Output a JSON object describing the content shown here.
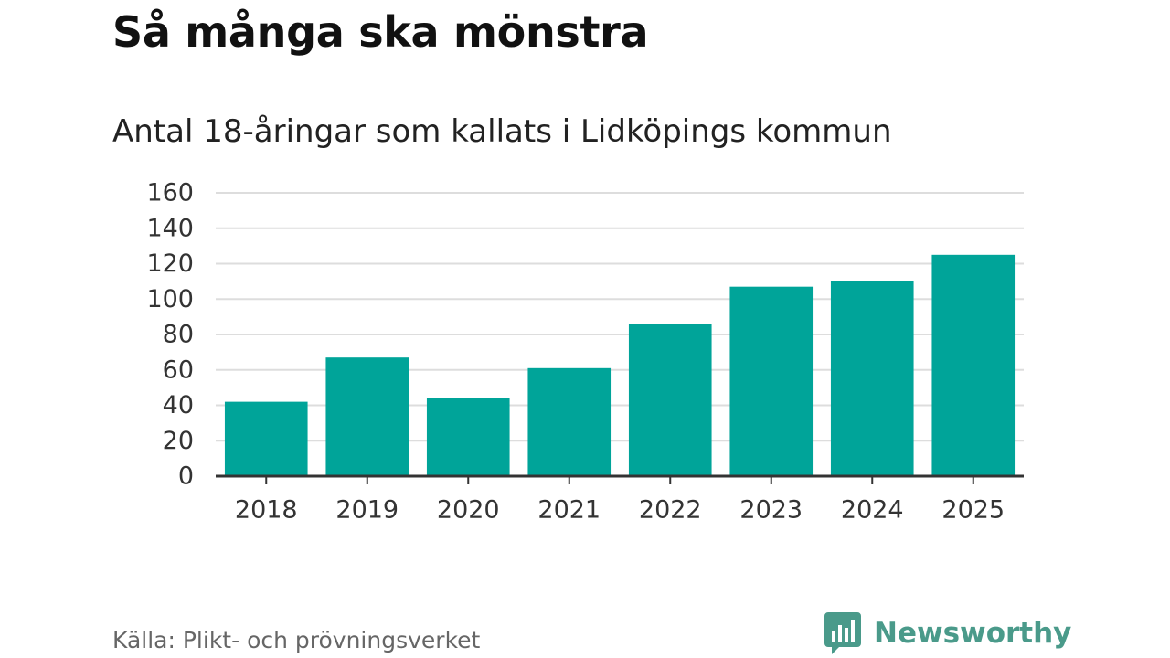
{
  "header": {
    "title": "Så många ska mönstra",
    "subtitle": "Antal 18-åringar som kallats i Lidköpings kommun"
  },
  "footer": {
    "source": "Källa: Plikt- och prövningsverket",
    "brand": "Newsworthy"
  },
  "colors": {
    "bar": "#00a499",
    "grid": "#dddddd",
    "axis": "#333333",
    "brand": "#4a9a8a"
  },
  "icons": {
    "brand_logo": "bar-chart-speech-bubble-icon"
  },
  "chart_data": {
    "type": "bar",
    "title": "Så många ska mönstra",
    "subtitle": "Antal 18-åringar som kallats i Lidköpings kommun",
    "xlabel": "",
    "ylabel": "",
    "categories": [
      "2018",
      "2019",
      "2020",
      "2021",
      "2022",
      "2023",
      "2024",
      "2025"
    ],
    "values": [
      42,
      67,
      44,
      61,
      86,
      107,
      110,
      125
    ],
    "ylim": [
      0,
      160
    ],
    "yticks": [
      0,
      20,
      40,
      60,
      80,
      100,
      120,
      140,
      160
    ],
    "grid": true,
    "legend": "none"
  }
}
